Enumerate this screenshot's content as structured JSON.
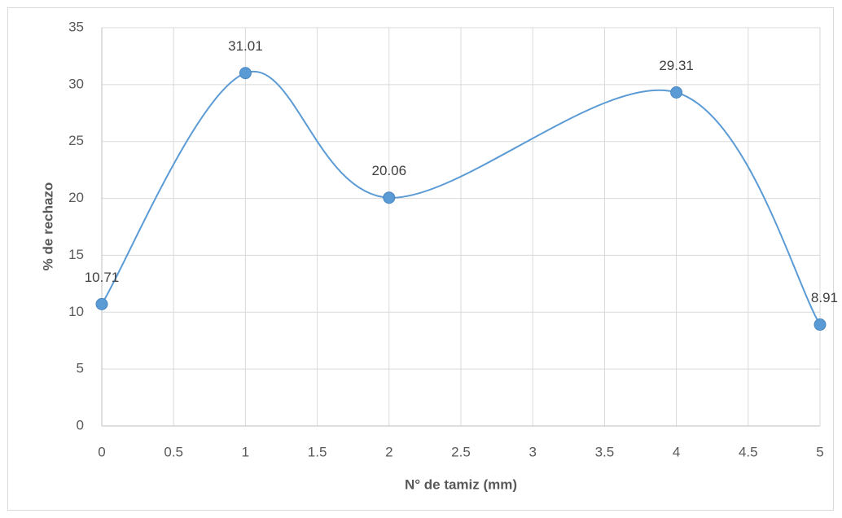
{
  "chart_data": {
    "type": "scatter_smooth",
    "x_label": "N° de tamiz (mm)",
    "y_label": "% de rechazo",
    "x": [
      0,
      1,
      2,
      4,
      5
    ],
    "series": [
      {
        "color": "#5b9bd5",
        "values": [
          10.71,
          31.01,
          20.06,
          29.31,
          8.91
        ]
      }
    ],
    "xlim": [
      0,
      5
    ],
    "xticks": [
      0,
      0.5,
      1,
      1.5,
      2,
      2.5,
      3,
      3.5,
      4,
      4.5,
      5
    ],
    "ylim": [
      0,
      35
    ],
    "yticks": [
      0,
      5,
      10,
      15,
      20,
      25,
      30,
      35
    ],
    "grid": true,
    "data_labels": true,
    "smooth": true
  }
}
